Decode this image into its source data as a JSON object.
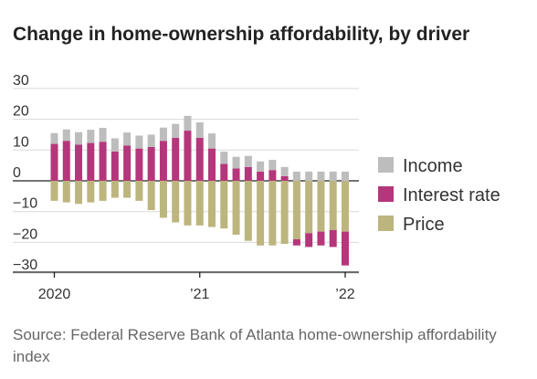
{
  "chart_data": {
    "type": "bar",
    "stacked": true,
    "title": "Change in home-ownership affordability, by driver",
    "ylim": [
      -30,
      30
    ],
    "y_ticks": [
      30,
      20,
      10,
      0,
      -10,
      -20,
      -30
    ],
    "x_ticks": [
      {
        "index": 0,
        "label": "2020"
      },
      {
        "index": 12,
        "label": "’21"
      },
      {
        "index": 24,
        "label": "’22"
      }
    ],
    "categories": [
      "2020-01",
      "2020-02",
      "2020-03",
      "2020-04",
      "2020-05",
      "2020-06",
      "2020-07",
      "2020-08",
      "2020-09",
      "2020-10",
      "2020-11",
      "2020-12",
      "2021-01",
      "2021-02",
      "2021-03",
      "2021-04",
      "2021-05",
      "2021-06",
      "2021-07",
      "2021-08",
      "2021-09",
      "2021-10",
      "2021-11",
      "2021-12",
      "2022-01"
    ],
    "series": [
      {
        "name": "Income",
        "color": "#bdbdbd",
        "values": [
          3.5,
          3.7,
          4.0,
          4.3,
          4.5,
          4.3,
          4.2,
          4.2,
          4.0,
          4.3,
          4.5,
          4.8,
          5.0,
          4.9,
          4.0,
          3.8,
          3.6,
          3.3,
          3.3,
          3.0,
          3.0,
          3.0,
          3.0,
          3.0,
          3.0
        ]
      },
      {
        "name": "Interest rate",
        "color": "#b5367a",
        "values": [
          12,
          13,
          11.8,
          12.3,
          12.7,
          9.5,
          11.5,
          10.5,
          11,
          13,
          14,
          16.3,
          14,
          10.5,
          5.5,
          4,
          4.5,
          3,
          3.5,
          1.5,
          -2,
          -4.5,
          -4.5,
          -5.5,
          -11
        ]
      },
      {
        "name": "Price",
        "color": "#bdb57e",
        "values": [
          -6.5,
          -7,
          -7.5,
          -7,
          -6.5,
          -5.5,
          -5.5,
          -6.5,
          -9.5,
          -12,
          -13.5,
          -14.5,
          -14.5,
          -15,
          -15.5,
          -17.5,
          -19.5,
          -21,
          -21,
          -20.5,
          -19,
          -17,
          -16.5,
          -16,
          -16.5
        ]
      }
    ]
  },
  "source_text": "Source: Federal Reserve Bank of Atlanta home-ownership affordability index"
}
